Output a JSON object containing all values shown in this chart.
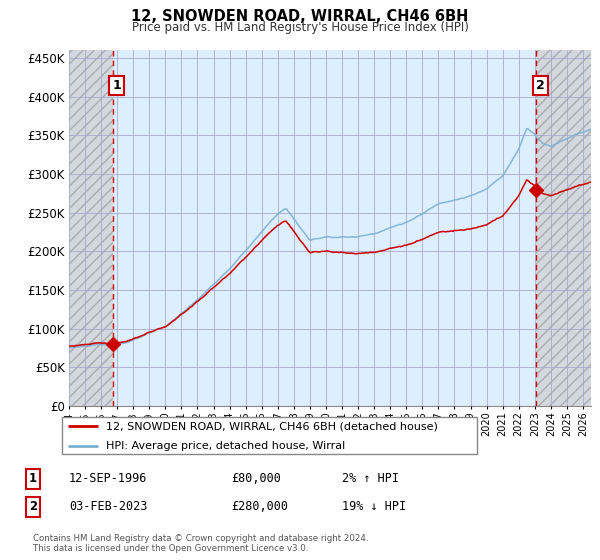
{
  "title": "12, SNOWDEN ROAD, WIRRAL, CH46 6BH",
  "subtitle": "Price paid vs. HM Land Registry's House Price Index (HPI)",
  "legend_line1": "12, SNOWDEN ROAD, WIRRAL, CH46 6BH (detached house)",
  "legend_line2": "HPI: Average price, detached house, Wirral",
  "annotation1_label": "1",
  "annotation1_date": "12-SEP-1996",
  "annotation1_price": "£80,000",
  "annotation1_hpi": "2% ↑ HPI",
  "annotation2_label": "2",
  "annotation2_date": "03-FEB-2023",
  "annotation2_price": "£280,000",
  "annotation2_hpi": "19% ↓ HPI",
  "footer": "Contains HM Land Registry data © Crown copyright and database right 2024.\nThis data is licensed under the Open Government Licence v3.0.",
  "ytick_labels": [
    "£0",
    "£50K",
    "£100K",
    "£150K",
    "£200K",
    "£250K",
    "£300K",
    "£350K",
    "£400K",
    "£450K"
  ],
  "ytick_values": [
    0,
    50000,
    100000,
    150000,
    200000,
    250000,
    300000,
    350000,
    400000,
    450000
  ],
  "ylim": [
    0,
    460000
  ],
  "xlim_start": 1994.0,
  "xlim_end": 2026.5,
  "sale1_x": 1996.71,
  "sale1_y": 80000,
  "sale2_x": 2023.09,
  "sale2_y": 280000,
  "hatch_left_end": 1996.71,
  "hatch_right_start": 2023.09,
  "dashed_line1_x": 1996.71,
  "dashed_line2_x": 2023.09,
  "line_color_red": "#cc0000",
  "line_color_blue": "#7ab0d4",
  "chart_bg_color": "#ddeeff",
  "hatch_color": "#c8c8c8",
  "grid_color": "#aaaacc",
  "annotation_box_color": "#cc0000",
  "xtick_years": [
    1994,
    1995,
    1996,
    1997,
    1998,
    1999,
    2000,
    2001,
    2002,
    2003,
    2004,
    2005,
    2006,
    2007,
    2008,
    2009,
    2010,
    2011,
    2012,
    2013,
    2014,
    2015,
    2016,
    2017,
    2018,
    2019,
    2020,
    2021,
    2022,
    2023,
    2024,
    2025,
    2026
  ]
}
